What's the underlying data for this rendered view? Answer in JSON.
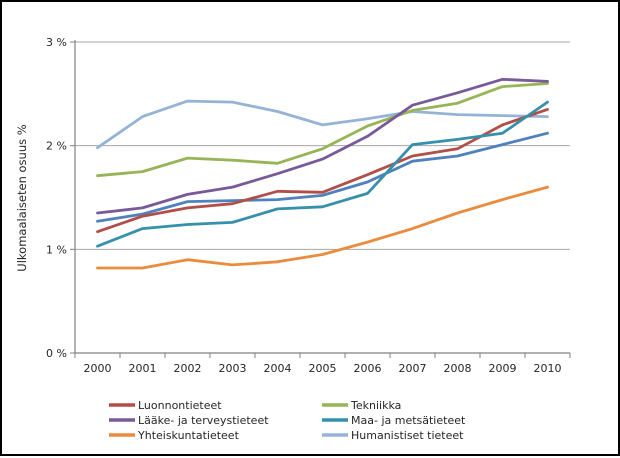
{
  "chart_data": {
    "type": "line",
    "title": "",
    "xlabel": "",
    "ylabel": "Ulkomaalaiseten osuus %",
    "x": [
      "2000",
      "2001",
      "2002",
      "2003",
      "2004",
      "2005",
      "2006",
      "2007",
      "2008",
      "2009",
      "2010"
    ],
    "ylim": [
      0,
      3
    ],
    "yticks": [
      {
        "value": 0,
        "label": "0 %"
      },
      {
        "value": 1,
        "label": "1 %"
      },
      {
        "value": 2,
        "label": "2 %"
      },
      {
        "value": 3,
        "label": "3 %"
      }
    ],
    "grid": true,
    "legend_position": "bottom",
    "series": [
      {
        "key": "humanistiset",
        "name": "Humanistiset tieteet",
        "color": "#95B3D7",
        "in_legend": true,
        "values": [
          1.98,
          2.28,
          2.43,
          2.42,
          2.33,
          2.2,
          2.26,
          2.33,
          2.3,
          2.29,
          2.28
        ]
      },
      {
        "key": "unlabeled-blue",
        "name": "",
        "color": "#4F81BD",
        "in_legend": false,
        "values": [
          1.27,
          1.34,
          1.46,
          1.47,
          1.48,
          1.52,
          1.65,
          1.85,
          1.9,
          2.01,
          2.12
        ]
      },
      {
        "key": "tekniikka",
        "name": "Tekniikka",
        "color": "#97B457",
        "in_legend": true,
        "values": [
          1.71,
          1.75,
          1.88,
          1.86,
          1.83,
          1.97,
          2.19,
          2.34,
          2.41,
          2.57,
          2.6
        ]
      },
      {
        "key": "luonnontieteet",
        "name": "Luonnontieteet",
        "color": "#B14E48",
        "in_legend": true,
        "values": [
          1.17,
          1.32,
          1.4,
          1.44,
          1.56,
          1.55,
          1.72,
          1.9,
          1.97,
          2.2,
          2.35
        ]
      },
      {
        "key": "laake-terveys",
        "name": "Lääke- ja terveystieteet",
        "color": "#775A97",
        "in_legend": true,
        "values": [
          1.35,
          1.4,
          1.53,
          1.6,
          1.73,
          1.87,
          2.09,
          2.39,
          2.51,
          2.64,
          2.62
        ]
      },
      {
        "key": "maa-metsa",
        "name": "Maa- ja metsätieteet",
        "color": "#3591AB",
        "in_legend": true,
        "values": [
          1.03,
          1.2,
          1.24,
          1.26,
          1.39,
          1.41,
          1.54,
          2.01,
          2.06,
          2.12,
          2.42
        ]
      },
      {
        "key": "yhteiskunta",
        "name": "Yhteiskuntatieteet",
        "color": "#EB8B3D",
        "in_legend": true,
        "values": [
          0.82,
          0.82,
          0.9,
          0.85,
          0.88,
          0.95,
          1.07,
          1.2,
          1.35,
          1.48,
          1.6
        ]
      }
    ],
    "legend_columns": [
      [
        3,
        4,
        6
      ],
      [
        2,
        5,
        0
      ]
    ]
  },
  "colors": {
    "gridline": "#A6A6A6",
    "axis": "#808080",
    "text": "#262626",
    "background": "#FFFFFF",
    "frame_border": "#000000"
  }
}
